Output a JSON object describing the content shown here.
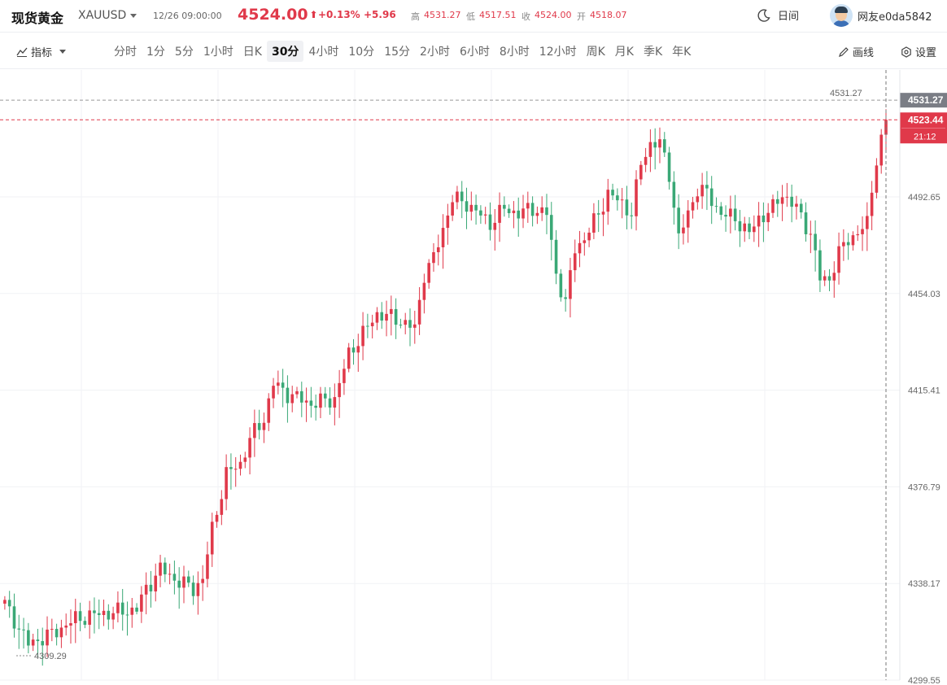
{
  "header": {
    "title": "现货黄金",
    "symbol": "XAUUSD",
    "datetime": "12/26 09:00:00",
    "price": "4524.00",
    "change_pct": "+0.13%",
    "change": "+5.96",
    "high_label": "高",
    "high": "4531.27",
    "low_label": "低",
    "low": "4517.51",
    "close_label": "收",
    "close": "4524.00",
    "open_label": "开",
    "open": "4518.07",
    "theme_label": "日间",
    "username": "网友e0da5842",
    "accent_up": "#e0394a",
    "accent_down": "#3aa876"
  },
  "toolbar": {
    "indicator_label": "指标",
    "intervals": [
      "分时",
      "1分",
      "5分",
      "1小时",
      "日K",
      "30分",
      "4小时",
      "10分",
      "15分",
      "2小时",
      "6小时",
      "8小时",
      "12小时",
      "周K",
      "月K",
      "季K",
      "年K"
    ],
    "active_interval": "30分",
    "draw_label": "画线",
    "settings_label": "设置"
  },
  "chart_data": {
    "type": "candlestick",
    "y_ticks": [
      "4492.65",
      "4454.03",
      "4415.41",
      "4376.79",
      "4338.17",
      "4299.55"
    ],
    "ylim": [
      4299.55,
      4537.5
    ],
    "high_marker": "4531.27",
    "current_price_marker": "4523.44",
    "countdown": "21:12",
    "low_marker": "4309.29",
    "grid": true,
    "close_anchors": [
      [
        0,
        4330
      ],
      [
        5,
        4314
      ],
      [
        10,
        4318
      ],
      [
        15,
        4324
      ],
      [
        20,
        4326
      ],
      [
        25,
        4327
      ],
      [
        28,
        4328
      ],
      [
        30,
        4336
      ],
      [
        33,
        4344
      ],
      [
        36,
        4340
      ],
      [
        40,
        4336
      ],
      [
        42,
        4340
      ],
      [
        44,
        4360
      ],
      [
        47,
        4382
      ],
      [
        50,
        4386
      ],
      [
        52,
        4396
      ],
      [
        55,
        4404
      ],
      [
        57,
        4418
      ],
      [
        60,
        4414
      ],
      [
        65,
        4410
      ],
      [
        70,
        4412
      ],
      [
        73,
        4430
      ],
      [
        76,
        4438
      ],
      [
        79,
        4446
      ],
      [
        83,
        4444
      ],
      [
        87,
        4440
      ],
      [
        89,
        4462
      ],
      [
        91,
        4468
      ],
      [
        93,
        4480
      ],
      [
        95,
        4492
      ],
      [
        98,
        4490
      ],
      [
        103,
        4482
      ],
      [
        106,
        4488
      ],
      [
        109,
        4486
      ],
      [
        112,
        4488
      ],
      [
        115,
        4486
      ],
      [
        117,
        4462
      ],
      [
        119,
        4450
      ],
      [
        121,
        4472
      ],
      [
        123,
        4476
      ],
      [
        126,
        4486
      ],
      [
        128,
        4494
      ],
      [
        131,
        4490
      ],
      [
        133,
        4486
      ],
      [
        135,
        4506
      ],
      [
        137,
        4514
      ],
      [
        139,
        4514
      ],
      [
        141,
        4502
      ],
      [
        143,
        4476
      ],
      [
        145,
        4486
      ],
      [
        147,
        4496
      ],
      [
        149,
        4494
      ],
      [
        152,
        4486
      ],
      [
        155,
        4484
      ],
      [
        158,
        4478
      ],
      [
        160,
        4484
      ],
      [
        163,
        4488
      ],
      [
        165,
        4494
      ],
      [
        168,
        4488
      ],
      [
        171,
        4478
      ],
      [
        173,
        4460
      ],
      [
        175,
        4460
      ],
      [
        177,
        4470
      ],
      [
        179,
        4476
      ],
      [
        181,
        4478
      ],
      [
        183,
        4482
      ],
      [
        184,
        4496
      ],
      [
        185,
        4508
      ],
      [
        186,
        4515
      ],
      [
        187,
        4523.44
      ]
    ]
  }
}
